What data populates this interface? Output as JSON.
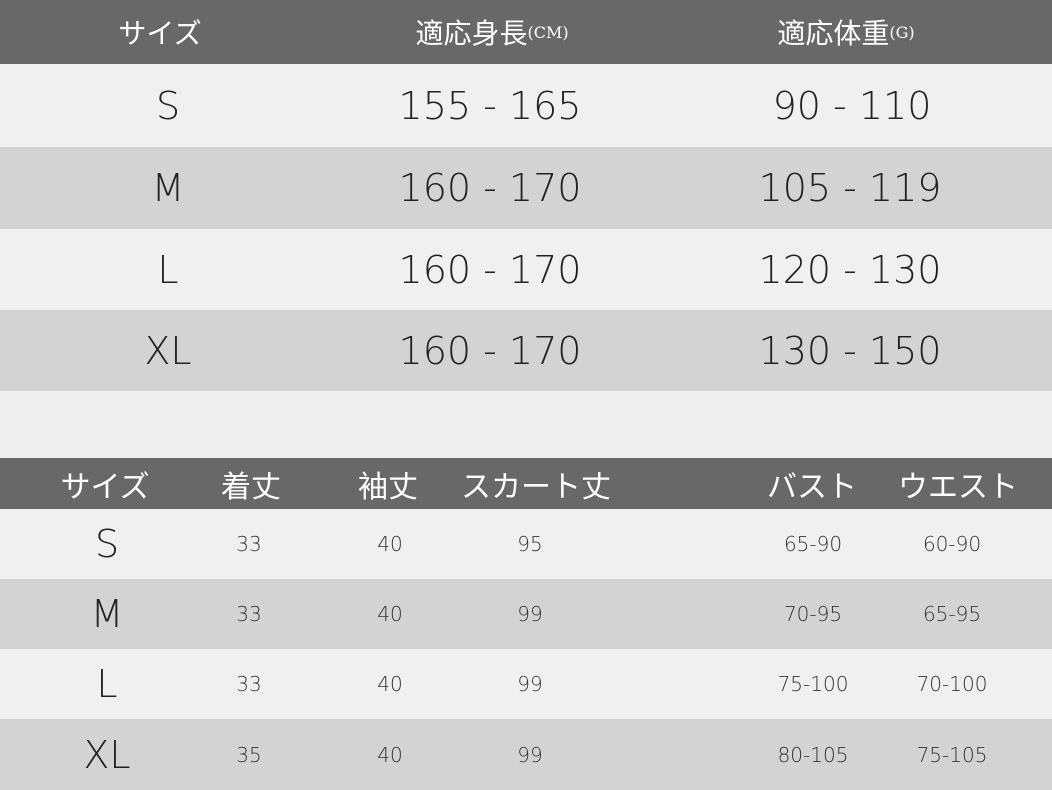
{
  "table1": {
    "headers": [
      "サイズ",
      "適応身長",
      "(CM)",
      "適応体重",
      "(G)"
    ],
    "rows": [
      {
        "size": "S",
        "height": "155 - 165",
        "weight": "90 - 110"
      },
      {
        "size": "M",
        "height": "160 - 170",
        "weight": "105 - 119"
      },
      {
        "size": "L",
        "height": "160 - 170",
        "weight": "120 - 130"
      },
      {
        "size": "XL",
        "height": "160 - 170",
        "weight": "130 - 150"
      }
    ]
  },
  "table2": {
    "headers": [
      "サイズ",
      "着丈",
      "袖丈",
      "スカート丈",
      "バスト",
      "ウエスト"
    ],
    "rows": [
      [
        "S",
        "33",
        "40",
        "95",
        "65-90",
        "60-90"
      ],
      [
        "M",
        "33",
        "40",
        "99",
        "70-95",
        "65-95"
      ],
      [
        "L",
        "33",
        "40",
        "99",
        "75-100",
        "70-100"
      ],
      [
        "XL",
        "35",
        "40",
        "99",
        "80-105",
        "75-105"
      ]
    ]
  },
  "colors": {
    "header": "#686868",
    "row_light": "#f0f0f0",
    "row_dark": "#d3d3d3"
  }
}
